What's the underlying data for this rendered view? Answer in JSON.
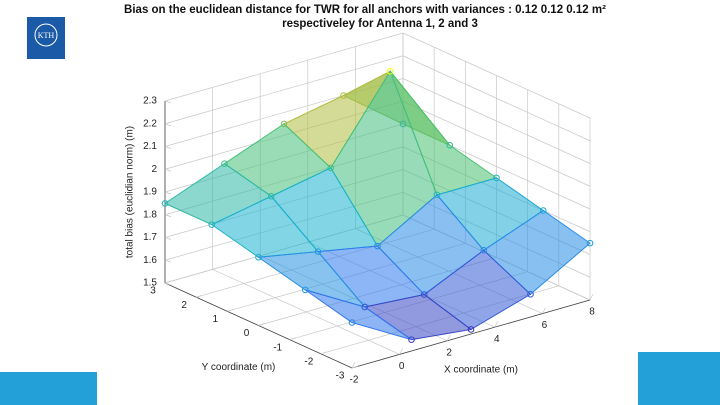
{
  "logo_text": "KTH",
  "chart_data": {
    "type": "surface3d",
    "title": "Bias on the euclidean distance for TWR for all anchors with variances : 0.12     0.12     0.12 m²",
    "subtitle": "respectiveley for Antenna 1, 2 and 3",
    "xlabel": "X coordinate (m)",
    "ylabel": "Y coordinate (m)",
    "zlabel": "total bias (euclidian norm) (m)",
    "x": [
      -2,
      0.5,
      3,
      5.5,
      8
    ],
    "y": [
      -3,
      -1.5,
      0,
      1.5,
      3
    ],
    "z": [
      [
        1.7,
        1.55,
        1.52,
        1.6,
        1.75
      ],
      [
        1.75,
        1.6,
        1.58,
        1.7,
        1.8
      ],
      [
        1.8,
        1.75,
        1.7,
        1.85,
        1.85
      ],
      [
        1.85,
        1.9,
        1.95,
        2.3,
        1.9
      ],
      [
        1.85,
        1.95,
        2.05,
        2.1,
        1.9
      ]
    ],
    "colormap": [
      "#3e26a8",
      "#2f7bf0",
      "#18b2d0",
      "#4ac16d",
      "#d4bb2f",
      "#f9fb0e"
    ],
    "xlim": [
      -2,
      8
    ],
    "ylim": [
      -3,
      3
    ],
    "zlim": [
      1.5,
      2.3
    ],
    "xticks": [
      -2,
      0,
      2,
      4,
      6,
      8
    ],
    "yticks": [
      -3,
      -2,
      -1,
      0,
      1,
      2,
      3
    ],
    "zticks": [
      1.5,
      1.6,
      1.7,
      1.8,
      1.9,
      2,
      2.1,
      2.2,
      2.3
    ],
    "grid": true
  }
}
